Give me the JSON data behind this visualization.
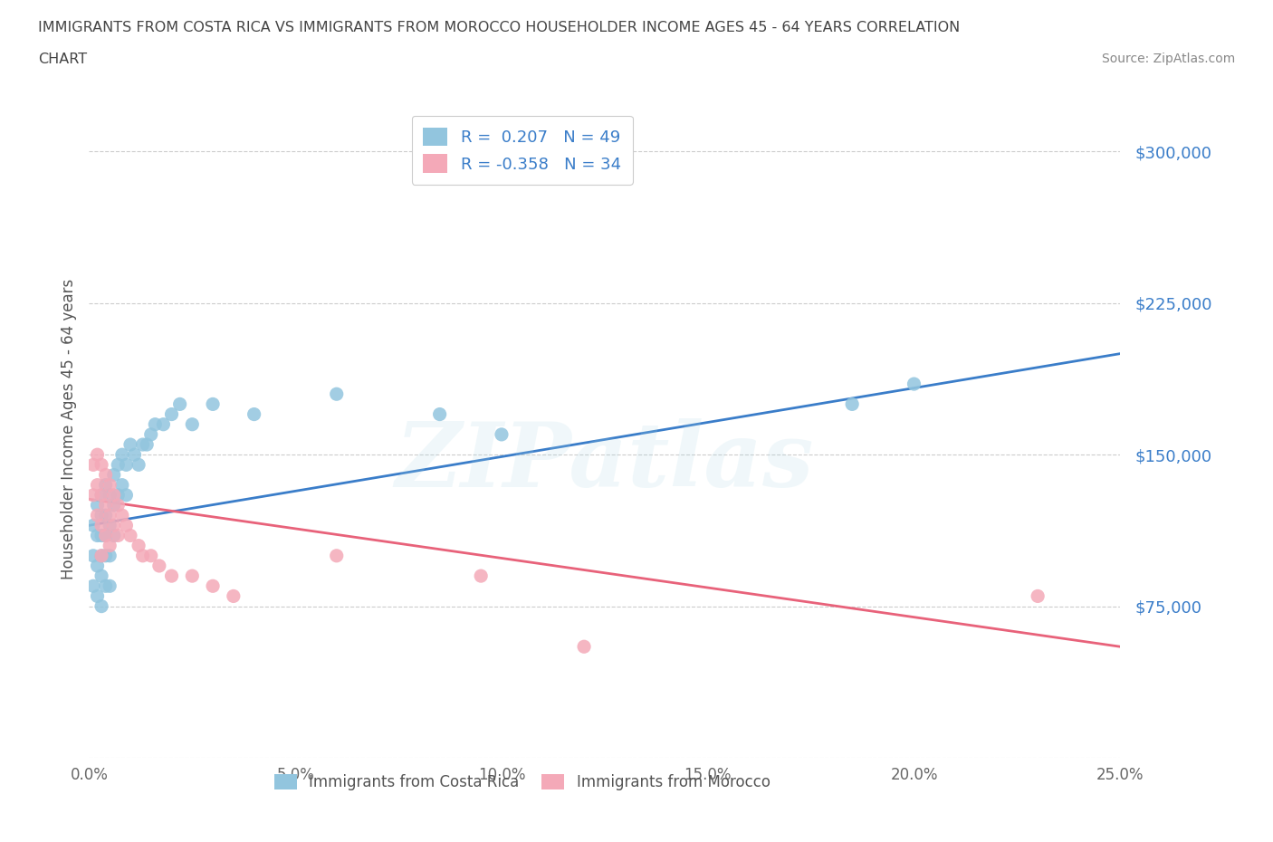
{
  "title_line1": "IMMIGRANTS FROM COSTA RICA VS IMMIGRANTS FROM MOROCCO HOUSEHOLDER INCOME AGES 45 - 64 YEARS CORRELATION",
  "title_line2": "CHART",
  "source_text": "Source: ZipAtlas.com",
  "r_costa_rica": 0.207,
  "n_costa_rica": 49,
  "r_morocco": -0.358,
  "n_morocco": 34,
  "ylabel": "Householder Income Ages 45 - 64 years",
  "xlim": [
    0.0,
    0.25
  ],
  "ylim": [
    0,
    325000
  ],
  "yticks": [
    0,
    75000,
    150000,
    225000,
    300000
  ],
  "ytick_labels": [
    "",
    "$75,000",
    "$150,000",
    "$225,000",
    "$300,000"
  ],
  "xticks": [
    0.0,
    0.05,
    0.1,
    0.15,
    0.2,
    0.25
  ],
  "xtick_labels": [
    "0.0%",
    "5.0%",
    "10.0%",
    "15.0%",
    "20.0%",
    "25.0%"
  ],
  "color_costa_rica": "#92c5de",
  "color_morocco": "#f4a9b8",
  "line_color_costa_rica": "#3a7dc9",
  "line_color_morocco": "#e8627a",
  "watermark": "ZIPatlas",
  "legend_label_cr": "Immigrants from Costa Rica",
  "legend_label_mo": "Immigrants from Morocco",
  "costa_rica_x": [
    0.001,
    0.001,
    0.001,
    0.002,
    0.002,
    0.002,
    0.002,
    0.003,
    0.003,
    0.003,
    0.003,
    0.003,
    0.003,
    0.004,
    0.004,
    0.004,
    0.004,
    0.004,
    0.005,
    0.005,
    0.005,
    0.005,
    0.006,
    0.006,
    0.006,
    0.007,
    0.007,
    0.008,
    0.008,
    0.009,
    0.009,
    0.01,
    0.011,
    0.012,
    0.013,
    0.014,
    0.015,
    0.016,
    0.018,
    0.02,
    0.022,
    0.025,
    0.03,
    0.04,
    0.06,
    0.085,
    0.1,
    0.185,
    0.2
  ],
  "costa_rica_y": [
    115000,
    100000,
    85000,
    125000,
    110000,
    95000,
    80000,
    130000,
    120000,
    110000,
    100000,
    90000,
    75000,
    135000,
    120000,
    110000,
    100000,
    85000,
    130000,
    115000,
    100000,
    85000,
    140000,
    125000,
    110000,
    145000,
    130000,
    150000,
    135000,
    145000,
    130000,
    155000,
    150000,
    145000,
    155000,
    155000,
    160000,
    165000,
    165000,
    170000,
    175000,
    165000,
    175000,
    170000,
    180000,
    170000,
    160000,
    175000,
    185000
  ],
  "morocco_x": [
    0.001,
    0.001,
    0.002,
    0.002,
    0.002,
    0.003,
    0.003,
    0.003,
    0.003,
    0.004,
    0.004,
    0.004,
    0.005,
    0.005,
    0.005,
    0.006,
    0.006,
    0.007,
    0.007,
    0.008,
    0.009,
    0.01,
    0.012,
    0.013,
    0.015,
    0.017,
    0.02,
    0.025,
    0.03,
    0.035,
    0.06,
    0.095,
    0.12,
    0.23
  ],
  "morocco_y": [
    145000,
    130000,
    150000,
    135000,
    120000,
    145000,
    130000,
    115000,
    100000,
    140000,
    125000,
    110000,
    135000,
    120000,
    105000,
    130000,
    115000,
    125000,
    110000,
    120000,
    115000,
    110000,
    105000,
    100000,
    100000,
    95000,
    90000,
    90000,
    85000,
    80000,
    100000,
    90000,
    55000,
    80000
  ],
  "cr_line_x": [
    0.0,
    0.25
  ],
  "cr_line_y": [
    115000,
    200000
  ],
  "mo_line_x": [
    0.0,
    0.25
  ],
  "mo_line_y": [
    128000,
    55000
  ]
}
